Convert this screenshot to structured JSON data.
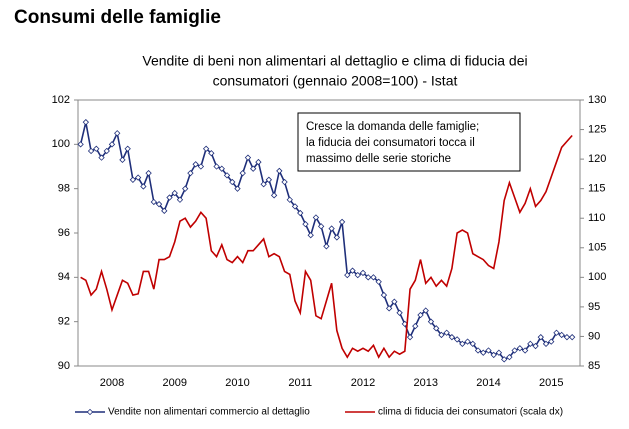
{
  "page_title": "Consumi delle famiglie",
  "chart_data": {
    "type": "line",
    "title": [
      "Vendite di beni non alimentari al dettaglio e clima di fiducia dei",
      "consumatori (gennaio 2008=100) - Istat"
    ],
    "annotation": [
      "Cresce la domanda delle famiglie;",
      "la fiducia dei consumatori tocca il",
      "massimo delle serie storiche"
    ],
    "categories": [
      null,
      null,
      null,
      null,
      null,
      null,
      "2008",
      null,
      null,
      null,
      null,
      null,
      null,
      null,
      null,
      null,
      null,
      null,
      "2009",
      null,
      null,
      null,
      null,
      null,
      null,
      null,
      null,
      null,
      null,
      null,
      "2010",
      null,
      null,
      null,
      null,
      null,
      null,
      null,
      null,
      null,
      null,
      null,
      "2011",
      null,
      null,
      null,
      null,
      null,
      null,
      null,
      null,
      null,
      null,
      null,
      "2012",
      null,
      null,
      null,
      null,
      null,
      null,
      null,
      null,
      null,
      null,
      null,
      "2013",
      null,
      null,
      null,
      null,
      null,
      null,
      null,
      null,
      null,
      null,
      null,
      "2014",
      null,
      null,
      null,
      null,
      null,
      null,
      null,
      null,
      null,
      null,
      null,
      "2015",
      null,
      null,
      null,
      null,
      null
    ],
    "ylim": [
      90,
      102
    ],
    "yticks": [
      90,
      92,
      94,
      96,
      98,
      100,
      102
    ],
    "y2lim": [
      85,
      130
    ],
    "y2ticks": [
      85,
      90,
      95,
      100,
      105,
      110,
      115,
      120,
      125,
      130
    ],
    "legend": "bottom",
    "series": [
      {
        "name": "Vendite non alimentari commercio al dettaglio",
        "color": "#1f2f7a",
        "markers": true,
        "values": [
          100.0,
          101.0,
          99.7,
          99.8,
          99.4,
          99.7,
          100.0,
          100.5,
          99.3,
          99.8,
          98.4,
          98.5,
          98.1,
          98.7,
          97.4,
          97.3,
          97.0,
          97.6,
          97.8,
          97.5,
          98.0,
          98.7,
          99.1,
          99.0,
          99.8,
          99.6,
          99.0,
          98.9,
          98.6,
          98.3,
          98.0,
          98.7,
          99.4,
          98.9,
          99.2,
          98.2,
          98.4,
          97.7,
          98.8,
          98.3,
          97.5,
          97.2,
          96.9,
          96.4,
          95.9,
          96.7,
          96.3,
          95.4,
          96.2,
          95.8,
          96.5,
          94.1,
          94.3,
          94.1,
          94.2,
          94.0,
          94.0,
          93.8,
          93.2,
          92.6,
          92.9,
          92.4,
          91.9,
          91.3,
          91.8,
          92.3,
          92.5,
          92.0,
          91.7,
          91.4,
          91.5,
          91.3,
          91.2,
          91.0,
          91.1,
          91.0,
          90.7,
          90.6,
          90.7,
          90.5,
          90.6,
          90.3,
          90.4,
          90.7,
          90.8,
          90.7,
          91.0,
          90.9,
          91.3,
          91.0,
          91.1,
          91.5,
          91.4,
          91.3,
          91.3,
          null
        ]
      },
      {
        "name": "clima di fiducia dei consumatori (scala dx)",
        "color": "#c00000",
        "axis": "y2",
        "markers": false,
        "values": [
          100,
          99.5,
          97,
          98,
          101,
          98,
          94.5,
          97,
          99.5,
          99,
          97,
          97.2,
          101,
          101,
          98,
          103,
          103,
          103.5,
          106,
          109.5,
          110,
          108.5,
          109.5,
          111,
          110,
          104.5,
          103.5,
          105.5,
          103,
          102.5,
          103.5,
          102.5,
          104.5,
          104.5,
          105.5,
          106.5,
          103.5,
          104,
          103.5,
          101,
          100.5,
          96,
          94,
          101,
          99.5,
          93.5,
          93,
          96,
          99,
          91,
          88,
          86.5,
          88,
          87.5,
          88,
          87.5,
          88.5,
          86.5,
          88,
          86.5,
          87.5,
          87,
          87.5,
          98,
          99.5,
          103,
          99,
          100,
          98.5,
          99.5,
          98.5,
          101.5,
          107.5,
          108,
          107.5,
          104,
          103.5,
          103,
          102,
          101.5,
          106,
          113,
          116,
          113.5,
          111,
          112.5,
          115,
          112,
          113,
          114.5,
          117,
          119.5,
          122,
          123,
          124,
          null
        ]
      }
    ]
  }
}
